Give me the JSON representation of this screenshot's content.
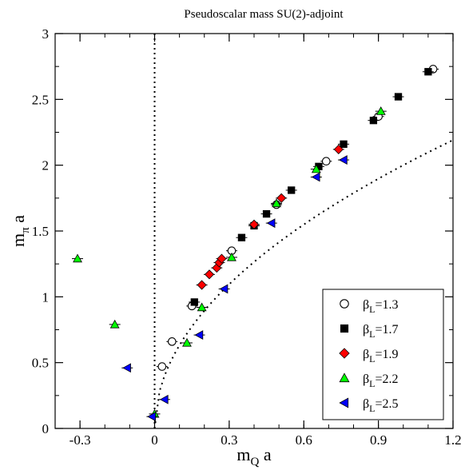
{
  "chart_data": {
    "type": "scatter",
    "title": "Pseudoscalar mass SU(2)-adjoint",
    "xlabel": {
      "main": "m",
      "sub": "Q",
      "suffix": " a"
    },
    "ylabel": {
      "main": "m",
      "sub": "π",
      "suffix": " a"
    },
    "xlim": [
      -0.4,
      1.2
    ],
    "ylim": [
      0,
      3
    ],
    "x_ticks": [
      {
        "value": -0.3,
        "label": "-0.3"
      },
      {
        "value": 0,
        "label": "0"
      },
      {
        "value": 0.3,
        "label": "0.3"
      },
      {
        "value": 0.6,
        "label": "0.6"
      },
      {
        "value": 0.9,
        "label": "0.9"
      },
      {
        "value": 1.2,
        "label": "1.2"
      }
    ],
    "y_ticks": [
      {
        "value": 0,
        "label": "0"
      },
      {
        "value": 0.5,
        "label": "0.5"
      },
      {
        "value": 1,
        "label": "1"
      },
      {
        "value": 1.5,
        "label": "1.5"
      },
      {
        "value": 2,
        "label": "2"
      },
      {
        "value": 2.5,
        "label": "2.5"
      },
      {
        "value": 3,
        "label": "3"
      }
    ],
    "grid": false,
    "legend_position": "bottom-right",
    "reference_lines": [
      {
        "type": "vertical",
        "x": 0,
        "style": "dotted"
      },
      {
        "type": "fit-curve",
        "style": "dotted",
        "x_range": [
          0.0,
          1.2
        ],
        "a": 2.0,
        "power": 0.5
      }
    ],
    "series": [
      {
        "name_main": "β",
        "name_sub": "L",
        "name_suffix": "=1.3",
        "marker": "circle-open",
        "color": "#000000",
        "points": [
          [
            0.03,
            0.47
          ],
          [
            0.07,
            0.66
          ],
          [
            0.15,
            0.93
          ],
          [
            0.31,
            1.35
          ],
          [
            0.49,
            1.7
          ],
          [
            0.69,
            2.03
          ],
          [
            0.9,
            2.37
          ],
          [
            1.12,
            2.73
          ]
        ]
      },
      {
        "name_main": "β",
        "name_sub": "L",
        "name_suffix": "=1.7",
        "marker": "square",
        "color": "#000000",
        "points": [
          [
            0.16,
            0.96
          ],
          [
            0.35,
            1.45
          ],
          [
            0.4,
            1.54
          ],
          [
            0.45,
            1.63
          ],
          [
            0.55,
            1.81
          ],
          [
            0.66,
            1.99
          ],
          [
            0.76,
            2.16
          ],
          [
            0.88,
            2.34
          ],
          [
            0.98,
            2.52
          ],
          [
            1.1,
            2.71
          ]
        ]
      },
      {
        "name_main": "β",
        "name_sub": "L",
        "name_suffix": "=1.9",
        "marker": "diamond",
        "color": "#ff0000",
        "points": [
          [
            0.19,
            1.09
          ],
          [
            0.22,
            1.17
          ],
          [
            0.25,
            1.22
          ],
          [
            0.26,
            1.26
          ],
          [
            0.27,
            1.29
          ],
          [
            0.4,
            1.55
          ],
          [
            0.51,
            1.75
          ],
          [
            0.74,
            2.12
          ]
        ]
      },
      {
        "name_main": "β",
        "name_sub": "L",
        "name_suffix": "=2.2",
        "marker": "triangle-up",
        "color": "#00ff00",
        "points": [
          [
            -0.31,
            1.29
          ],
          [
            -0.16,
            0.79
          ],
          [
            0.0,
            0.11
          ],
          [
            0.13,
            0.65
          ],
          [
            0.19,
            0.92
          ],
          [
            0.31,
            1.3
          ],
          [
            0.49,
            1.71
          ],
          [
            0.65,
            1.97
          ],
          [
            0.91,
            2.41
          ]
        ]
      },
      {
        "name_main": "β",
        "name_sub": "L",
        "name_suffix": "=2.5",
        "marker": "triangle-left",
        "color": "#0000ff",
        "points": [
          [
            -0.11,
            0.46
          ],
          [
            -0.01,
            0.09
          ],
          [
            0.04,
            0.22
          ],
          [
            0.18,
            0.71
          ],
          [
            0.28,
            1.06
          ],
          [
            0.47,
            1.56
          ],
          [
            0.65,
            1.91
          ],
          [
            0.76,
            2.04
          ]
        ]
      }
    ]
  }
}
